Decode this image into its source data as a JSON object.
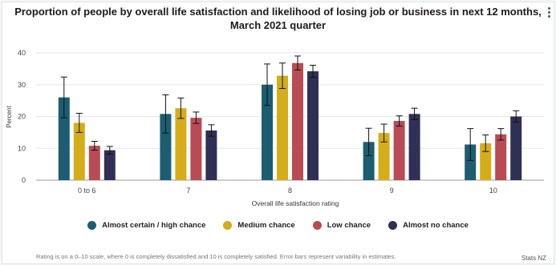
{
  "chart_data": {
    "type": "bar",
    "title": "Proportion of people by overall life satisfaction and likelihood of losing job or business in next 12 months, March 2021 quarter",
    "xlabel": "Overall life satisfaction rating",
    "ylabel": "Percent",
    "ylim": [
      0,
      40
    ],
    "yticks": [
      "0",
      "10",
      "20",
      "30",
      "40"
    ],
    "categories": [
      "0 to 6",
      "7",
      "8",
      "9",
      "10"
    ],
    "grid": true,
    "legend_position": "bottom",
    "series": [
      {
        "name": "Almost certain / high chance",
        "color": "#1c5d72",
        "values": [
          26,
          20.8,
          30,
          12,
          11.2
        ],
        "error": [
          6.4,
          6,
          6.5,
          4.3,
          5
        ]
      },
      {
        "name": "Medium chance",
        "color": "#d4ad19",
        "values": [
          18,
          22.6,
          32.8,
          14.8,
          11.6
        ],
        "error": [
          3,
          3.2,
          4,
          2.8,
          2.6
        ]
      },
      {
        "name": "Low chance",
        "color": "#b94b55",
        "values": [
          10.8,
          19.6,
          36.8,
          18.6,
          14.4
        ],
        "error": [
          1.4,
          1.8,
          2.2,
          1.6,
          1.8
        ]
      },
      {
        "name": "Almost no chance",
        "color": "#302f56",
        "values": [
          9.4,
          15.6,
          34.2,
          20.8,
          20
        ],
        "error": [
          1.2,
          1.8,
          1.9,
          1.8,
          1.8
        ]
      }
    ]
  },
  "footnote": "Rating is on a 0–10 scale, where 0 is completely dissatisfied and 10 is completely satisfied. Error bars represent variability in estimates.",
  "source": "Stats NZ"
}
